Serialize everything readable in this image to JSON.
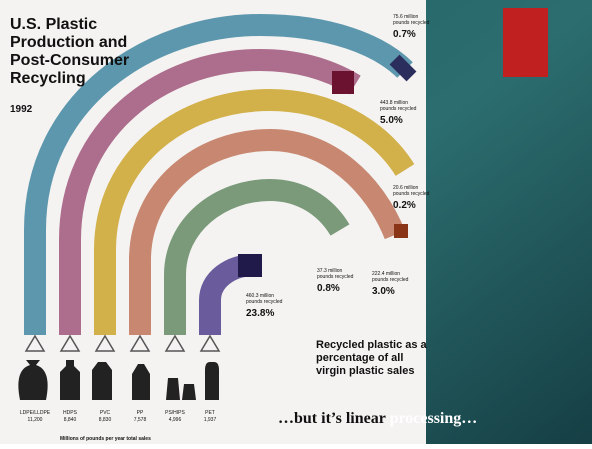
{
  "infographic": {
    "title": [
      "U.S. Plastic",
      "Production and",
      "Post-Consumer",
      "Recycling"
    ],
    "year": "1992",
    "tubes": [
      {
        "amount": [
          "75.6 million",
          "pounds recycled"
        ],
        "percent": "0.7%"
      },
      {
        "amount": [
          "443.8 million",
          "pounds recycled"
        ],
        "percent": "5.0%"
      },
      {
        "amount": [
          "20.6 million",
          "pounds recycled"
        ],
        "percent": "0.2%"
      },
      {
        "amount": [
          "222.4 million",
          "pounds recycled"
        ],
        "percent": "3.0%"
      },
      {
        "amount": [
          "37.3 million",
          "pounds recycled"
        ],
        "percent": "0.8%"
      },
      {
        "amount": [
          "460.3 million",
          "pounds recycled"
        ],
        "percent": "23.8%"
      }
    ],
    "resins": [
      {
        "name": "LDPE/LLDPE",
        "sales": "11,200"
      },
      {
        "name": "HDPS",
        "sales": "8,840"
      },
      {
        "name": "PVC",
        "sales": "8,830"
      },
      {
        "name": "PP",
        "sales": "7,578"
      },
      {
        "name": "PS/HIPS",
        "sales": "4,996"
      },
      {
        "name": "PET",
        "sales": "1,937"
      }
    ],
    "footnote": "Millions of pounds per year total sales",
    "legend": [
      "Recycled plastic as a",
      "percentage of all",
      "virgin plastic sales"
    ]
  },
  "caption": [
    "…but it’s linear ",
    "processing…"
  ]
}
